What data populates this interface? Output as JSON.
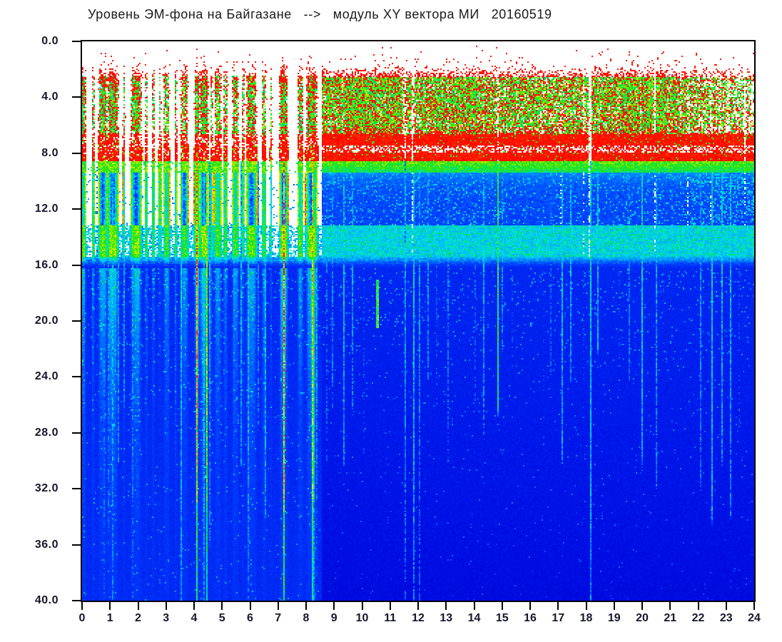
{
  "title": "Уровень ЭМ-фона на Байгазане   -->   модуль XY вектора МИ   20160519",
  "chart_data": {
    "type": "heatmap",
    "subtype": "daily-spectrogram",
    "title": "Уровень ЭМ-фона на Байгазане --> модуль XY вектора МИ 20160519",
    "date_shown": "20160519",
    "x_axis": {
      "unit": "hour",
      "min": 0,
      "max": 24,
      "ticks": [
        "0",
        "1",
        "2",
        "3",
        "4",
        "5",
        "6",
        "7",
        "8",
        "9",
        "10",
        "11",
        "12",
        "13",
        "14",
        "15",
        "16",
        "17",
        "18",
        "19",
        "20",
        "21",
        "22",
        "23",
        "24"
      ]
    },
    "y_axis": {
      "min": 0,
      "max": 40,
      "direction": "down",
      "ticks": [
        "0.0",
        "4.0",
        "8.0",
        "12.0",
        "16.0",
        "20.0",
        "24.0",
        "28.0",
        "32.0",
        "36.0",
        "40.0"
      ]
    },
    "colormap": {
      "name": "jet-like",
      "out_of_range": "#ffffff",
      "stops": [
        [
          0,
          0,
          0,
          150
        ],
        [
          0.14,
          0,
          10,
          225
        ],
        [
          0.3,
          0,
          60,
          255
        ],
        [
          0.4,
          0,
          170,
          255
        ],
        [
          0.47,
          0,
          225,
          225
        ],
        [
          0.55,
          0,
          225,
          90
        ],
        [
          0.63,
          60,
          230,
          0
        ],
        [
          0.72,
          190,
          240,
          0
        ],
        [
          0.78,
          255,
          220,
          0
        ],
        [
          0.84,
          255,
          120,
          0
        ],
        [
          0.9,
          255,
          30,
          0
        ],
        [
          1,
          255,
          0,
          0
        ]
      ]
    },
    "model": {
      "night_end": 8.55,
      "bands": {
        "top_white": 1.5,
        "dots": 2.6,
        "green": 6.6,
        "red": 8.6,
        "white_lane": [
          7.4,
          7.95
        ],
        "green_line": 9.35,
        "mid": 13.2,
        "cyan_band": 15.4,
        "fade": 16.2,
        "deep_base": 0.235,
        "deep_slope": 0.095
      },
      "day_profile": [
        [
          8.55,
          0.88
        ],
        [
          9.2,
          0.95
        ],
        [
          10,
          1
        ],
        [
          11.2,
          0.95
        ],
        [
          11.7,
          0.85
        ],
        [
          12.5,
          0.9
        ],
        [
          13.5,
          0.92
        ],
        [
          14.5,
          0.88
        ],
        [
          15.5,
          0.85
        ],
        [
          16.5,
          0.82
        ],
        [
          17.5,
          0.82
        ],
        [
          18.6,
          0.88
        ],
        [
          19.5,
          0.97
        ],
        [
          20.5,
          1
        ],
        [
          21.2,
          0.9
        ],
        [
          21.8,
          0.78
        ],
        [
          22.5,
          0.7
        ],
        [
          23,
          0.63
        ],
        [
          23.5,
          0.52
        ],
        [
          24,
          0.5
        ]
      ],
      "night_events": [
        [
          0.05,
          0.1,
          0.85
        ],
        [
          0.4,
          0.05,
          0.6
        ],
        [
          0.75,
          0.18,
          0.9
        ],
        [
          1.1,
          0.22,
          0.95
        ],
        [
          1.5,
          0.05,
          0.6
        ],
        [
          1.93,
          0.22,
          0.92
        ],
        [
          2.3,
          0.06,
          0.5
        ],
        [
          2.55,
          0.06,
          0.55
        ],
        [
          2.78,
          0.07,
          0.3
        ],
        [
          3.02,
          0.12,
          0.75
        ],
        [
          3.35,
          0.05,
          0.5
        ],
        [
          3.65,
          0.15,
          0.72
        ],
        [
          4.1,
          0.1,
          0.95
        ],
        [
          4.35,
          0.18,
          1
        ],
        [
          4.62,
          0.05,
          0.55
        ],
        [
          4.85,
          0.14,
          0.8
        ],
        [
          5.12,
          0.08,
          0.62
        ],
        [
          5.48,
          0.13,
          0.8
        ],
        [
          5.75,
          0.05,
          0.45
        ],
        [
          6.05,
          0.2,
          0.95
        ],
        [
          6.5,
          0.09,
          0.6
        ],
        [
          6.75,
          0.05,
          0.45
        ],
        [
          7.2,
          0.16,
          1
        ],
        [
          7.8,
          0.11,
          0.7
        ],
        [
          8.2,
          0.22,
          1
        ]
      ],
      "day_gaps": [
        [
          9.32,
          0.03,
          0.6
        ],
        [
          10.55,
          0.03,
          0.5
        ],
        [
          11.53,
          0.05,
          0.97
        ],
        [
          11.82,
          0.05,
          0.97
        ],
        [
          13.05,
          0.03,
          0.35
        ],
        [
          14.33,
          0.03,
          0.45
        ],
        [
          14.85,
          0.04,
          0.9
        ],
        [
          15.55,
          0.03,
          0.35
        ],
        [
          16.45,
          0.03,
          0.45
        ],
        [
          17.1,
          0.04,
          0.6
        ],
        [
          17.93,
          0.035,
          0.85
        ],
        [
          18.14,
          0.06,
          0.97
        ],
        [
          19.15,
          0.03,
          0.4
        ],
        [
          19.95,
          0.03,
          0.5
        ],
        [
          20.45,
          0.04,
          0.7
        ],
        [
          20.95,
          0.03,
          0.45
        ],
        [
          21.38,
          0.03,
          0.5
        ],
        [
          21.65,
          0.04,
          0.7
        ],
        [
          22.05,
          0.03,
          0.5
        ],
        [
          22.45,
          0.04,
          0.6
        ],
        [
          22.78,
          0.03,
          0.5
        ],
        [
          23.08,
          0.04,
          0.7
        ],
        [
          23.38,
          0.03,
          0.55
        ],
        [
          23.68,
          0.04,
          0.6
        ],
        [
          23.92,
          0.03,
          0.55
        ]
      ],
      "stripes": [
        [
          0.15,
          0.02,
          0.4,
          30,
          0
        ],
        [
          0.55,
          0.02,
          0.42,
          34,
          0
        ],
        [
          0.8,
          0.025,
          0.45,
          40,
          0
        ],
        [
          0.95,
          0.02,
          0.42,
          36,
          0
        ],
        [
          1.1,
          0.02,
          0.44,
          40,
          0
        ],
        [
          1.3,
          0.02,
          0.4,
          30,
          0
        ],
        [
          1.5,
          0.02,
          0.38,
          26,
          0
        ],
        [
          1.8,
          0.025,
          0.45,
          40,
          0
        ],
        [
          1.95,
          0.02,
          0.42,
          34,
          0
        ],
        [
          2.1,
          0.02,
          0.4,
          30,
          0
        ],
        [
          2.55,
          0.025,
          0.5,
          40,
          0
        ],
        [
          2.95,
          0.025,
          0.46,
          40,
          0
        ],
        [
          3.05,
          0.02,
          0.44,
          36,
          0
        ],
        [
          3.35,
          0.02,
          0.42,
          30,
          0
        ],
        [
          3.55,
          0.03,
          0.52,
          40,
          0
        ],
        [
          3.72,
          0.02,
          0.42,
          30,
          0
        ],
        [
          4.1,
          0.04,
          0.7,
          40,
          1
        ],
        [
          4.35,
          0.03,
          0.5,
          40,
          0
        ],
        [
          4.45,
          0.04,
          0.66,
          40,
          1
        ],
        [
          4.55,
          0.025,
          0.5,
          36,
          0
        ],
        [
          4.75,
          0.02,
          0.42,
          30,
          0
        ],
        [
          4.95,
          0.02,
          0.44,
          34,
          0
        ],
        [
          5.15,
          0.02,
          0.42,
          30,
          0
        ],
        [
          5.3,
          0.03,
          0.52,
          40,
          0
        ],
        [
          5.68,
          0.02,
          0.42,
          30,
          0
        ],
        [
          5.95,
          0.035,
          0.56,
          40,
          0
        ],
        [
          6.3,
          0.02,
          0.4,
          28,
          0
        ],
        [
          6.55,
          0.02,
          0.44,
          34,
          0
        ],
        [
          6.78,
          0.02,
          0.4,
          28,
          0
        ],
        [
          7.2,
          0.05,
          0.78,
          40,
          1
        ],
        [
          7.55,
          0.02,
          0.42,
          30,
          0
        ],
        [
          7.85,
          0.025,
          0.46,
          36,
          0
        ],
        [
          8.1,
          0.03,
          0.6,
          40,
          1
        ],
        [
          8.25,
          0.05,
          0.85,
          40,
          1
        ],
        [
          8.4,
          0.03,
          0.62,
          40,
          1
        ],
        [
          8.75,
          0.02,
          0.42,
          30,
          0
        ],
        [
          8.95,
          0.02,
          0.4,
          26,
          0
        ],
        [
          9.35,
          0.02,
          0.42,
          30,
          0
        ],
        [
          9.65,
          0.02,
          0.4,
          26,
          0
        ],
        [
          10.05,
          0.02,
          0.42,
          30,
          0
        ],
        [
          10.35,
          0.02,
          0.4,
          26,
          0
        ],
        [
          10.55,
          0.025,
          0.48,
          30,
          0
        ],
        [
          10.85,
          0.02,
          0.4,
          26,
          0
        ],
        [
          11.15,
          0.02,
          0.4,
          24,
          0
        ],
        [
          11.55,
          0.02,
          0.46,
          40,
          0
        ],
        [
          11.85,
          0.02,
          0.46,
          40,
          0
        ],
        [
          12.07,
          0.035,
          0.62,
          40,
          0
        ],
        [
          12.35,
          0.02,
          0.4,
          24,
          0
        ],
        [
          12.65,
          0.02,
          0.4,
          26,
          0
        ],
        [
          13.08,
          0.02,
          0.42,
          30,
          0
        ],
        [
          13.35,
          0.02,
          0.38,
          22,
          0
        ],
        [
          13.65,
          0.02,
          0.4,
          24,
          0
        ],
        [
          14.05,
          0.02,
          0.4,
          26,
          0
        ],
        [
          14.35,
          0.02,
          0.42,
          28,
          0
        ],
        [
          14.85,
          0.03,
          0.58,
          26,
          0
        ],
        [
          15.0,
          0.02,
          0.38,
          22,
          0
        ],
        [
          15.35,
          0.02,
          0.4,
          24,
          0
        ],
        [
          15.6,
          0.02,
          0.42,
          28,
          0
        ],
        [
          15.9,
          0.02,
          0.38,
          22,
          0
        ],
        [
          16.2,
          0.02,
          0.4,
          24,
          0
        ],
        [
          16.5,
          0.02,
          0.44,
          30,
          0
        ],
        [
          16.75,
          0.02,
          0.4,
          24,
          0
        ],
        [
          17.15,
          0.02,
          0.44,
          30,
          0
        ],
        [
          17.45,
          0.02,
          0.4,
          24,
          0
        ],
        [
          17.93,
          0.03,
          0.55,
          40,
          0
        ],
        [
          18.15,
          0.04,
          0.6,
          40,
          0
        ],
        [
          18.42,
          0.02,
          0.42,
          22,
          0
        ],
        [
          18.8,
          0.02,
          0.38,
          22,
          0
        ],
        [
          19.2,
          0.02,
          0.42,
          26,
          0
        ],
        [
          19.55,
          0.02,
          0.4,
          24,
          0
        ],
        [
          20.0,
          0.025,
          0.46,
          30,
          0
        ],
        [
          20.5,
          0.025,
          0.46,
          32,
          0
        ],
        [
          20.75,
          0.02,
          0.4,
          24,
          0
        ],
        [
          21.0,
          0.02,
          0.44,
          28,
          0
        ],
        [
          21.45,
          0.02,
          0.44,
          30,
          0
        ],
        [
          21.7,
          0.025,
          0.46,
          32,
          0
        ],
        [
          22.1,
          0.025,
          0.46,
          32,
          0
        ],
        [
          22.5,
          0.025,
          0.48,
          34,
          0
        ],
        [
          22.85,
          0.02,
          0.44,
          30,
          0
        ],
        [
          23.15,
          0.025,
          0.48,
          34,
          0
        ],
        [
          23.45,
          0.02,
          0.44,
          30,
          0
        ],
        [
          23.75,
          0.025,
          0.46,
          32,
          0
        ],
        [
          23.95,
          0.02,
          0.44,
          30,
          0
        ]
      ],
      "blobs": [
        [
          10.55,
          0.05,
          17,
          20.5,
          0.82
        ]
      ]
    }
  },
  "colors": {
    "background": "#ffffff",
    "frame": "#000000",
    "tick_label": "#16162c",
    "title": "#1a1a1a"
  }
}
